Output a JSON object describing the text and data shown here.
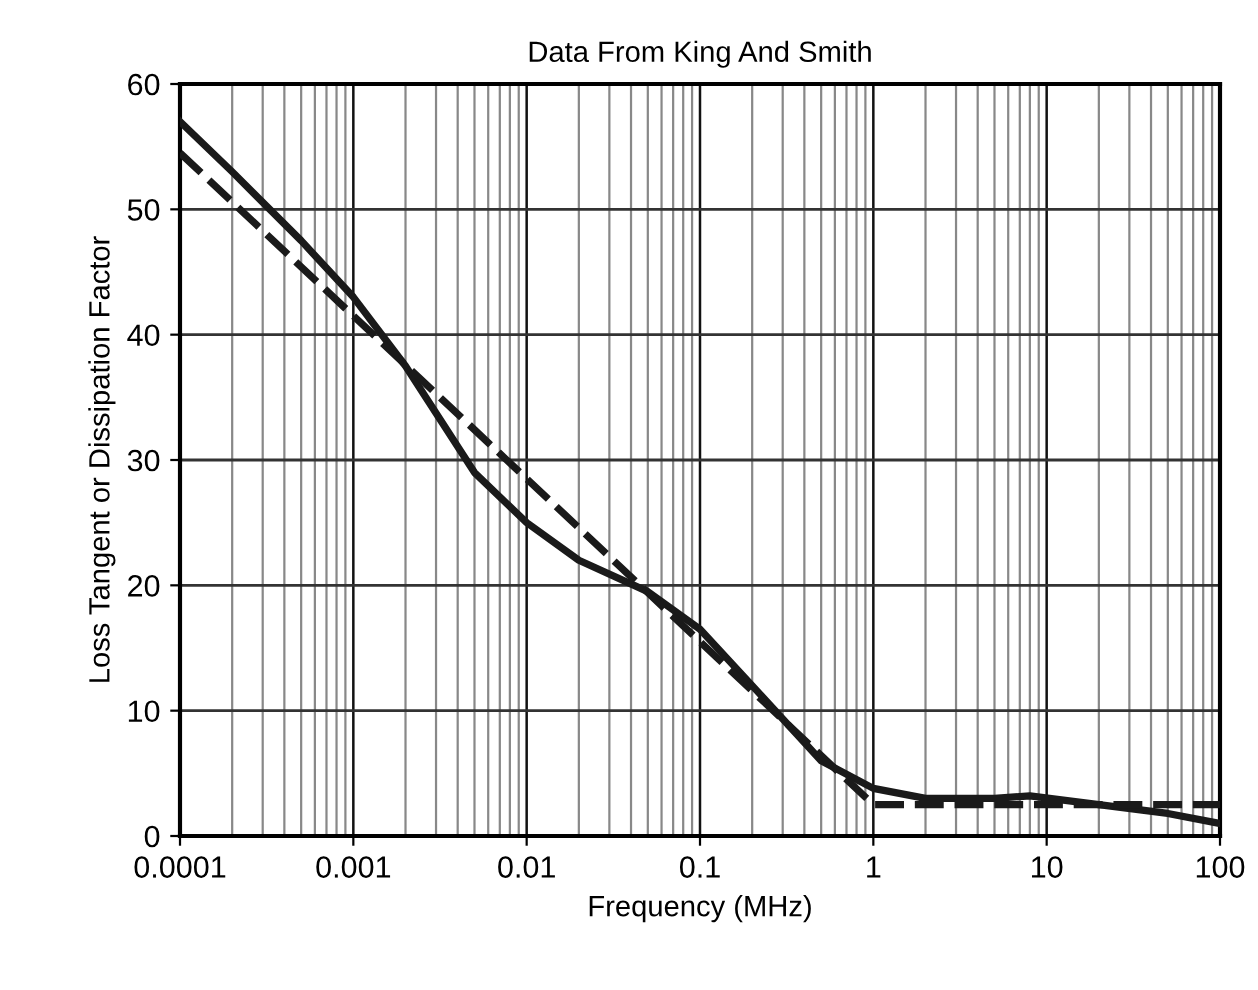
{
  "chart_data": {
    "type": "line",
    "title": "Data From King And Smith",
    "xlabel": "Frequency (MHz)",
    "ylabel": "Loss Tangent or Dissipation Factor",
    "log": "x",
    "grid": true,
    "marker": "none",
    "xlim": [
      0.0001,
      100
    ],
    "xticks": [
      0.0001,
      0.001,
      0.01,
      0.1,
      1,
      10,
      100
    ],
    "ylim": [
      0,
      60
    ],
    "yticks": [
      0,
      10,
      20,
      30,
      40,
      50,
      60
    ],
    "series": [
      {
        "color": "#1a1a1a",
        "line_style": "solid",
        "x": [
          0.0001,
          0.0002,
          0.0005,
          0.001,
          0.002,
          0.005,
          0.01,
          0.02,
          0.05,
          0.1,
          0.2,
          0.5,
          1,
          2,
          5,
          8,
          20,
          50,
          100
        ],
        "values": [
          57,
          53,
          47.5,
          43,
          37.5,
          29,
          25,
          22,
          19.5,
          16.5,
          12,
          6,
          3.8,
          3,
          3,
          3.2,
          2.5,
          1.8,
          1
        ]
      },
      {
        "color": "#1a1a1a",
        "line_style": "dashed",
        "x": [
          0.0001,
          1,
          100
        ],
        "values": [
          54.5,
          2.5,
          2.5
        ]
      }
    ]
  }
}
